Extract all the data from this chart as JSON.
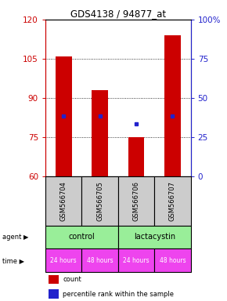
{
  "title": "GDS4138 / 94877_at",
  "samples": [
    "GSM566704",
    "GSM566705",
    "GSM566706",
    "GSM566707"
  ],
  "count_values": [
    106,
    93,
    75,
    114
  ],
  "percentile_values": [
    83,
    83,
    80,
    83
  ],
  "ylim_left": [
    60,
    120
  ],
  "yticks_left": [
    60,
    75,
    90,
    105,
    120
  ],
  "ylim_right": [
    0,
    100
  ],
  "yticks_right": [
    0,
    25,
    50,
    75,
    100
  ],
  "ytick_labels_right": [
    "0",
    "25",
    "50",
    "75",
    "100%"
  ],
  "bar_color": "#cc0000",
  "dot_color": "#2222cc",
  "agent_color": "#99ee99",
  "time_color": "#ee44ee",
  "sample_bg_color": "#cccccc",
  "left_tick_color": "#cc0000",
  "right_tick_color": "#2222cc",
  "time_labels": [
    "24 hours",
    "48 hours",
    "24 hours",
    "48 hours"
  ],
  "agent_spans": [
    [
      "control",
      0,
      2
    ],
    [
      "lactacystin",
      2,
      4
    ]
  ],
  "legend_count_color": "#cc0000",
  "legend_percentile_color": "#2222cc",
  "height_ratios": [
    3.5,
    1.1,
    0.52,
    0.52,
    0.65
  ]
}
